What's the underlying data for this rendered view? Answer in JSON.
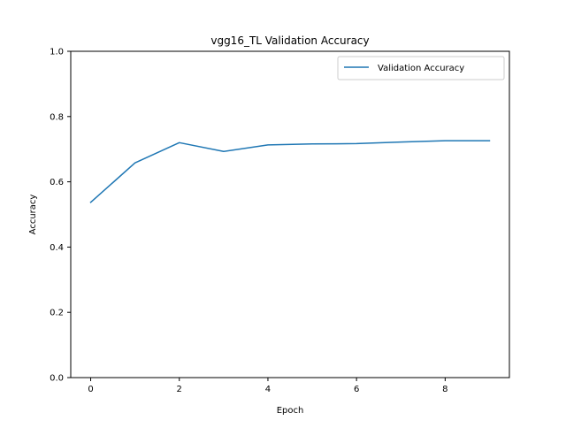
{
  "chart_data": {
    "type": "line",
    "title": "vgg16_TL Validation Accuracy",
    "xlabel": "Epoch",
    "ylabel": "Accuracy",
    "xlim": [
      -0.45,
      9.45
    ],
    "ylim": [
      0.0,
      1.0
    ],
    "xticks": [
      0,
      2,
      4,
      6,
      8
    ],
    "yticks": [
      0.0,
      0.2,
      0.4,
      0.6,
      0.8,
      1.0
    ],
    "xtick_labels": [
      "0",
      "2",
      "4",
      "6",
      "8"
    ],
    "ytick_labels": [
      "0.0",
      "0.2",
      "0.4",
      "0.6",
      "0.8",
      "1.0"
    ],
    "grid": false,
    "legend_position": "top-right",
    "series": [
      {
        "name": "Validation Accuracy",
        "color": "#1f77b4",
        "x": [
          0,
          1,
          2,
          3,
          4,
          5,
          6,
          7,
          8,
          9
        ],
        "y": [
          0.537,
          0.658,
          0.72,
          0.693,
          0.713,
          0.716,
          0.717,
          0.722,
          0.726,
          0.726
        ]
      }
    ]
  }
}
